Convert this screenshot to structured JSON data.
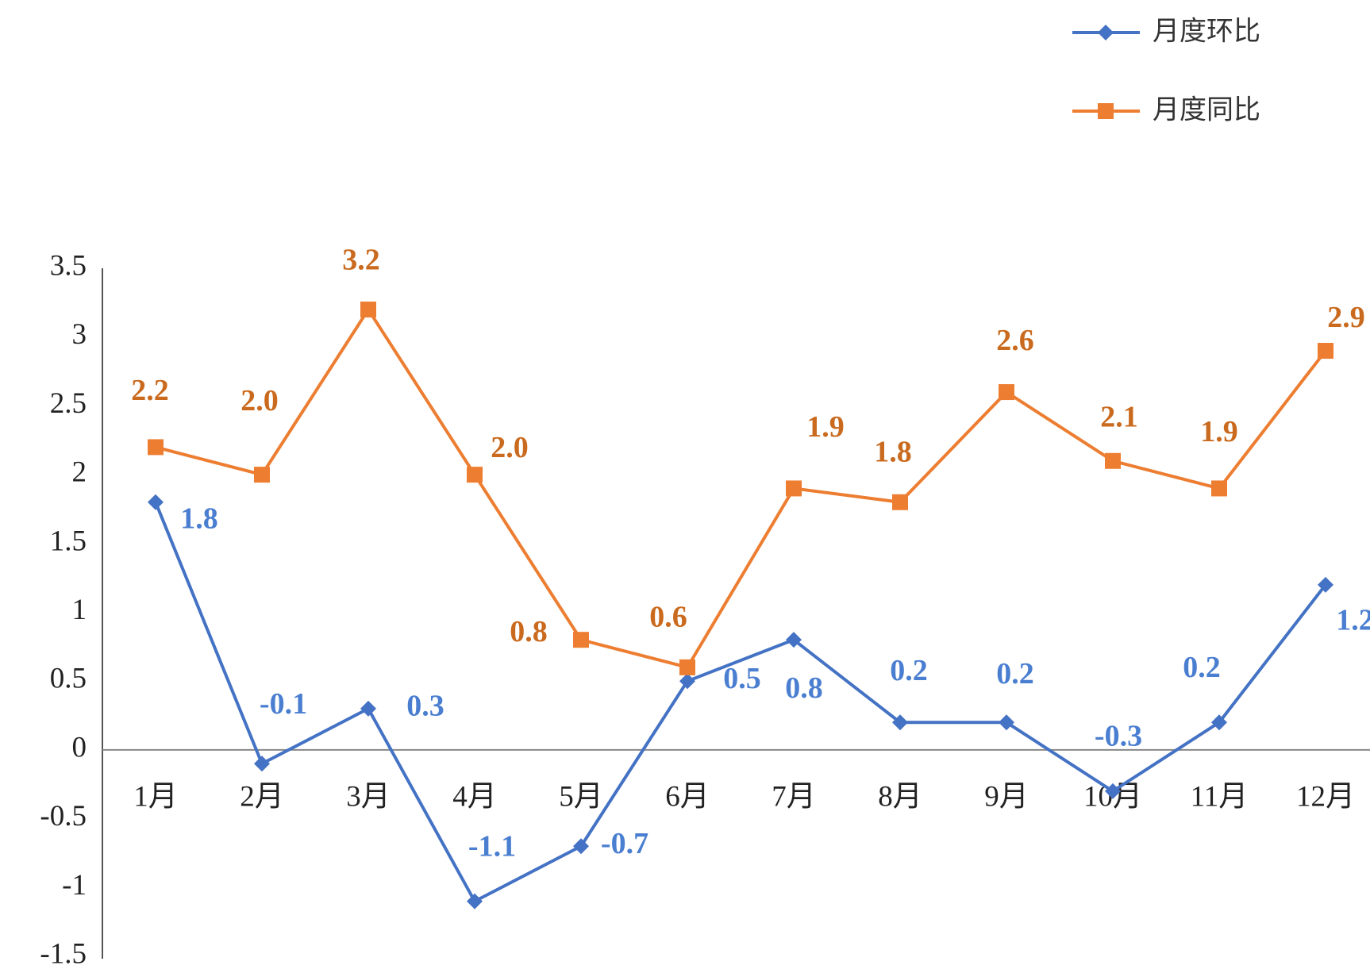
{
  "chart_data": {
    "type": "line",
    "categories": [
      "1月",
      "2月",
      "3月",
      "4月",
      "5月",
      "6月",
      "7月",
      "8月",
      "9月",
      "10月",
      "11月",
      "12月"
    ],
    "series": [
      {
        "name": "月度环比",
        "color": "#4472c4",
        "marker": "diamond",
        "values": [
          1.8,
          -0.1,
          0.3,
          -1.1,
          -0.7,
          0.5,
          0.8,
          0.2,
          0.2,
          -0.3,
          0.2,
          1.2
        ]
      },
      {
        "name": "月度同比",
        "color": "#ed7d31",
        "marker": "square",
        "values": [
          2.2,
          2.0,
          3.2,
          2.0,
          0.8,
          0.6,
          1.9,
          1.8,
          2.6,
          2.1,
          1.9,
          2.9
        ],
        "value_labels": [
          "2.2",
          "2.0",
          "3.2",
          "2.0",
          "0.8",
          "0.6",
          "1.9",
          "1.8",
          "2.6",
          "2.1",
          "1.9",
          "2.9"
        ]
      }
    ],
    "ylim": [
      -1.5,
      3.5
    ],
    "yticks": [
      -1.5,
      -1,
      -0.5,
      0,
      0.5,
      1,
      1.5,
      2,
      2.5,
      3,
      3.5
    ],
    "grid": false,
    "legend": "top-right"
  }
}
